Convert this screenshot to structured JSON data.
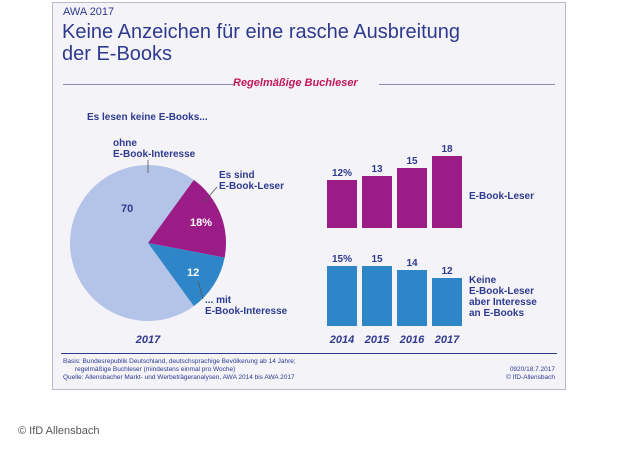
{
  "header": {
    "awa": "AWA 2017",
    "title_line1": "Keine Anzeichen für eine rasche Ausbreitung",
    "title_line2": "der E-Books",
    "section": "Regelmäßige Buchleser"
  },
  "pie": {
    "heading": "Es lesen keine E-Books...",
    "year": "2017",
    "labels": {
      "no_interest_1": "ohne",
      "no_interest_2": "E-Book-Interesse",
      "ebook_1": "Es sind",
      "ebook_2": "E-Book-Leser",
      "interest_1": "... mit",
      "interest_2": "E-Book-Interesse"
    },
    "value_labels": {
      "no_interest": "70",
      "ebook": "18%",
      "interest": "12"
    }
  },
  "bars": {
    "legend_ebook": "E-Book-Leser",
    "legend_interest_1": "Keine",
    "legend_interest_2": "E-Book-Leser",
    "legend_interest_3": "aber Interesse",
    "legend_interest_4": "an E-Books",
    "ebook_labels": [
      "12%",
      "13",
      "15",
      "18"
    ],
    "interest_labels": [
      "15%",
      "15",
      "14",
      "12"
    ]
  },
  "footer": {
    "line1": "Basis: Bundesrepublik Deutschland, deutschsprachige Bevölkerung ab 14 Jahre;",
    "line2": "regelmäßige Buchleser (mindestens einmal pro Woche)",
    "line3": "Quelle: Allensbacher Markt- und Werbeträgeranalysen, AWA 2014 bis AWA 2017",
    "code": "0920/18.7.2017",
    "org": "© IfD-Allensbach"
  },
  "copyright": "© IfD Allensbach",
  "colors": {
    "pie_main": "#b4c4e8",
    "pie_ebook": "#9b1c87",
    "pie_interest": "#2e86c9",
    "bar_ebook": "#9b1c87",
    "bar_interest": "#2e86c9",
    "text": "#2f3a8f"
  },
  "chart_data": [
    {
      "type": "pie",
      "title": "Es lesen keine E-Books...",
      "xlabel": "2017",
      "categories": [
        "ohne E-Book-Interesse",
        "Es sind E-Book-Leser",
        "... mit E-Book-Interesse"
      ],
      "values": [
        70,
        18,
        12
      ]
    },
    {
      "type": "bar",
      "categories": [
        "2014",
        "2015",
        "2016",
        "2017"
      ],
      "series": [
        {
          "name": "E-Book-Leser",
          "values": [
            12,
            13,
            15,
            18
          ]
        },
        {
          "name": "Keine E-Book-Leser aber Interesse an E-Books",
          "values": [
            15,
            15,
            14,
            12
          ]
        }
      ],
      "ylim": [
        0,
        20
      ],
      "legend": "right"
    }
  ]
}
